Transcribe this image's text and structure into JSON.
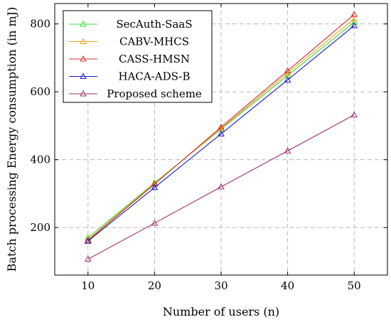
{
  "chart_data": {
    "type": "line",
    "xlabel": "Number of users (n)",
    "ylabel": "Batch processing Energy consumption (in mJ)",
    "x": [
      10,
      20,
      30,
      40,
      50
    ],
    "xticks": [
      "10",
      "20",
      "30",
      "40",
      "50"
    ],
    "yticks": [
      "200",
      "400",
      "600",
      "800"
    ],
    "xlim": [
      5,
      55
    ],
    "ylim": [
      60,
      860
    ],
    "grid": true,
    "legend_position": "top-left",
    "series": [
      {
        "name": "SecAuth-SaaS",
        "color": "#33dd33",
        "marker": "triangle",
        "values": [
          170,
          332,
          490,
          648,
          805
        ]
      },
      {
        "name": "CABV-MHCS",
        "color": "#f0a020",
        "marker": "triangle",
        "values": [
          165,
          330,
          492,
          655,
          815
        ]
      },
      {
        "name": "CASS-HMSN",
        "color": "#d03030",
        "marker": "triangle",
        "values": [
          162,
          328,
          496,
          662,
          828
        ]
      },
      {
        "name": "HACA-ADS-B",
        "color": "#1a1acc",
        "marker": "triangle",
        "values": [
          160,
          318,
          476,
          635,
          795
        ]
      },
      {
        "name": "Proposed scheme",
        "color": "#a03070",
        "marker": "triangle",
        "values": [
          107,
          213,
          320,
          426,
          532
        ]
      }
    ]
  }
}
